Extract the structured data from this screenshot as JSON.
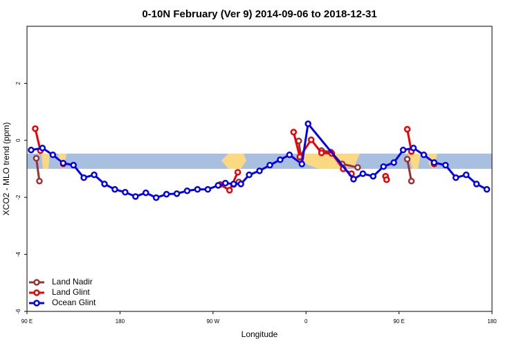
{
  "chart_data": {
    "type": "line",
    "title": "0-10N February (Ver 9)   2014-09-06 to 2018-12-31",
    "x_label": "Longitude",
    "y_label": "XCO2 - MLO trend (ppm)",
    "xlim": [
      90,
      540
    ],
    "xticks": [
      {
        "value": 90,
        "label": "90 E"
      },
      {
        "value": 180,
        "label": "180"
      },
      {
        "value": 270,
        "label": "90 W"
      },
      {
        "value": 360,
        "label": "0"
      },
      {
        "value": 450,
        "label": "90 E"
      },
      {
        "value": 540,
        "label": "180"
      }
    ],
    "ylim": [
      -6,
      4
    ],
    "yticks": [
      -6,
      -4,
      -2,
      0,
      2
    ],
    "legend": "bottom-left",
    "series": [
      {
        "name": "Land Nadir",
        "color": "#993333",
        "x": [
          99,
          102,
          null,
          290,
          295,
          null,
          353,
          355,
          null,
          375,
          384,
          395,
          410,
          null,
          437,
          438,
          null,
          458,
          462,
          null,
          484
        ],
        "values": [
          -0.63,
          -1.43,
          null,
          -1.55,
          -1.46,
          null,
          -0.02,
          -0.6,
          null,
          -0.36,
          -0.41,
          -0.83,
          -0.95,
          null,
          -1.26,
          -1.38,
          null,
          -0.66,
          -1.43,
          null,
          -0.78
        ]
      },
      {
        "name": "Land Glint",
        "color": "#ee0000",
        "x": [
          98,
          103,
          null,
          125,
          null,
          277,
          286,
          294,
          null,
          348,
          354,
          365,
          375,
          385,
          396,
          404,
          null,
          437,
          438,
          null,
          458,
          462,
          null,
          484
        ],
        "values": [
          0.41,
          -0.36,
          null,
          -0.83,
          null,
          -1.55,
          -1.75,
          -1.12,
          null,
          0.29,
          -0.58,
          0.02,
          -0.44,
          -0.46,
          -1.0,
          -1.17,
          null,
          -1.26,
          -1.38,
          null,
          0.39,
          -0.39,
          null,
          -0.83
        ]
      },
      {
        "name": "Ocean Glint",
        "color": "#0000ee",
        "x": [
          94,
          105,
          115,
          125,
          135,
          145,
          155,
          165,
          175,
          185,
          195,
          205,
          215,
          225,
          235,
          245,
          255,
          265,
          275,
          282,
          290,
          297,
          305,
          315,
          325,
          335,
          344,
          356,
          362,
          406,
          415,
          425,
          435,
          445,
          454,
          464,
          474,
          484,
          495,
          505,
          515,
          525,
          535
        ],
        "values": [
          -0.34,
          -0.27,
          -0.51,
          -0.8,
          -0.87,
          -1.31,
          -1.21,
          -1.53,
          -1.72,
          -1.82,
          -1.97,
          -1.84,
          -2.01,
          -1.89,
          -1.87,
          -1.77,
          -1.72,
          -1.72,
          -1.58,
          -1.5,
          -1.53,
          -1.53,
          -1.21,
          -1.07,
          -0.87,
          -0.68,
          -0.51,
          -0.83,
          0.58,
          -1.36,
          -1.17,
          -1.26,
          -0.92,
          -0.78,
          -0.34,
          -0.27,
          -0.51,
          -0.78,
          -0.87,
          -1.31,
          -1.21,
          -1.53,
          -1.72
        ]
      }
    ]
  }
}
